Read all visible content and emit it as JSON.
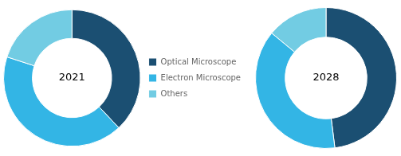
{
  "chart_data": [
    {
      "type": "doughnut",
      "annotations": [
        "2021"
      ],
      "categories": [
        "Optical Microscope",
        "Electron Microscope",
        "Others"
      ],
      "values": [
        38,
        42,
        20
      ],
      "colors": [
        "#1b4f72",
        "#33b5e5",
        "#72cce3"
      ],
      "legend": "right"
    },
    {
      "type": "doughnut",
      "annotations": [
        "2028"
      ],
      "categories": [
        "Optical Microscope",
        "Electron Microscope",
        "Others"
      ],
      "values": [
        48,
        38,
        14
      ],
      "colors": [
        "#1b4f72",
        "#33b5e5",
        "#72cce3"
      ]
    }
  ]
}
